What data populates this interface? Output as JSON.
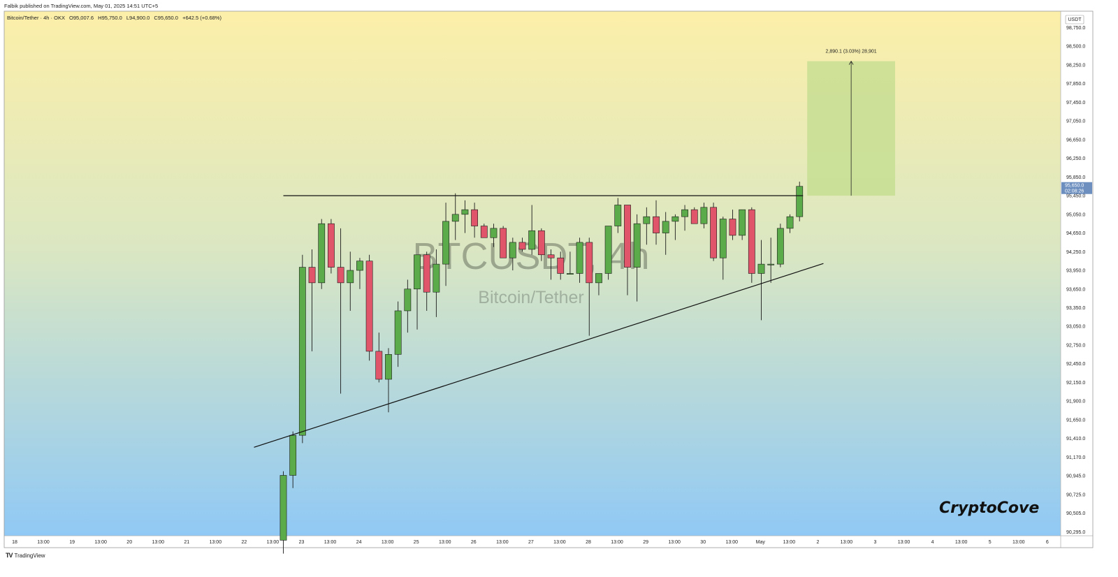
{
  "header": {
    "published_line": "Falbik published on TradingView.com, May 01, 2025 14:51 UTC+5"
  },
  "symbol_bar": {
    "name": "Bitcoin/Tether · 4h · OKX",
    "open": "O95,007.6",
    "high": "H95,750.0",
    "low": "L94,900.0",
    "close": "C95,650.0",
    "change": "+642.5 (+0.68%)"
  },
  "watermark": {
    "ticker": "BTCUSDT, 4h",
    "name": "Bitcoin/Tether"
  },
  "brand": "CryptoCove",
  "footer": {
    "logo": "TV",
    "text": "TradingView"
  },
  "colors": {
    "bg_top": "#fcefa9",
    "bg_bottom": "#90c9f5",
    "up": "#5cab4a",
    "down": "#e0556a",
    "target_box": "#c2dc8e",
    "price_label_bg": "#6c8fbf"
  },
  "chart_data": {
    "type": "candlestick",
    "price_axis": {
      "unit": "USDT",
      "ticks": [
        98750,
        98500,
        98250,
        97850,
        97450,
        97050,
        96650,
        96250,
        95850,
        95450,
        95050,
        94650,
        94250,
        93950,
        93650,
        93350,
        93050,
        92750,
        92450,
        92150,
        91900,
        91650,
        91410,
        91170,
        90945,
        90725,
        90505,
        90295
      ],
      "tick_labels": [
        "98,750.0",
        "98,500.0",
        "98,250.0",
        "97,850.0",
        "97,450.0",
        "97,050.0",
        "96,650.0",
        "96,250.0",
        "95,850.0",
        "95,450.0",
        "95,050.0",
        "94,650.0",
        "94,250.0",
        "93,950.0",
        "93,650.0",
        "93,350.0",
        "93,050.0",
        "92,750.0",
        "92,450.0",
        "92,150.0",
        "91,900.0",
        "91,650.0",
        "91,410.0",
        "91,170.0",
        "90,945.0",
        "90,725.0",
        "90,505.0",
        "90,295.0"
      ],
      "current_price": "95,650.0",
      "countdown": "02:08:26"
    },
    "time_axis": {
      "labels": [
        "18",
        "13:00",
        "19",
        "13:00",
        "20",
        "13:00",
        "21",
        "13:00",
        "22",
        "13:00",
        "23",
        "13:00",
        "24",
        "13:00",
        "25",
        "13:00",
        "26",
        "13:00",
        "27",
        "13:00",
        "28",
        "13:00",
        "29",
        "13:00",
        "30",
        "13:00",
        "May",
        "13:00",
        "2",
        "13:00",
        "3",
        "13:00",
        "4",
        "13:00",
        "5",
        "13:00",
        "6"
      ]
    },
    "candles": [
      [
        90200,
        91000,
        90050,
        90950
      ],
      [
        90950,
        91500,
        90800,
        91450
      ],
      [
        91450,
        94200,
        91350,
        94000
      ],
      [
        94000,
        94300,
        92650,
        93750
      ],
      [
        93750,
        94950,
        93650,
        94850
      ],
      [
        94850,
        94950,
        93900,
        94000
      ],
      [
        94000,
        94750,
        92000,
        93750
      ],
      [
        93750,
        94250,
        93300,
        93950
      ],
      [
        93950,
        94150,
        93650,
        94100
      ],
      [
        94100,
        94200,
        92500,
        92650
      ],
      [
        92650,
        92950,
        92150,
        92200
      ],
      [
        92200,
        92700,
        91750,
        92600
      ],
      [
        92600,
        93450,
        92400,
        93300
      ],
      [
        93300,
        93800,
        92950,
        93650
      ],
      [
        93650,
        94200,
        93000,
        94200
      ],
      [
        94200,
        94250,
        93300,
        93600
      ],
      [
        93600,
        94300,
        93200,
        94050
      ],
      [
        94050,
        95300,
        93700,
        94900
      ],
      [
        94900,
        95500,
        94500,
        95050
      ],
      [
        95050,
        95350,
        94650,
        95150
      ],
      [
        95150,
        95300,
        94550,
        94800
      ],
      [
        94800,
        94850,
        94550,
        94550
      ],
      [
        94550,
        94850,
        94350,
        94750
      ],
      [
        94750,
        94800,
        94200,
        94150
      ],
      [
        94150,
        94550,
        93950,
        94450
      ],
      [
        94450,
        94550,
        94250,
        94300
      ],
      [
        94300,
        95250,
        94200,
        94700
      ],
      [
        94700,
        94750,
        94100,
        94200
      ],
      [
        94200,
        94300,
        93800,
        94150
      ],
      [
        94150,
        94250,
        93800,
        93900
      ],
      [
        93900,
        94250,
        93900,
        93900
      ],
      [
        93900,
        94550,
        93750,
        94450
      ],
      [
        94450,
        94550,
        92900,
        93750
      ],
      [
        93750,
        93900,
        93550,
        93900
      ],
      [
        93900,
        94800,
        93800,
        94800
      ],
      [
        94800,
        95400,
        94650,
        95250
      ],
      [
        95250,
        95250,
        93550,
        94000
      ],
      [
        94000,
        95050,
        93450,
        94850
      ],
      [
        94850,
        95200,
        94400,
        95000
      ],
      [
        95000,
        95350,
        94400,
        94650
      ],
      [
        94650,
        95100,
        94200,
        94900
      ],
      [
        94900,
        95050,
        94500,
        95000
      ],
      [
        95000,
        95250,
        94700,
        95150
      ],
      [
        95150,
        95200,
        94850,
        94850
      ],
      [
        94850,
        95300,
        94750,
        95200
      ],
      [
        95200,
        95300,
        94100,
        94150
      ],
      [
        94150,
        95000,
        93800,
        94950
      ],
      [
        94950,
        95150,
        94500,
        94600
      ],
      [
        94600,
        95150,
        94500,
        95150
      ],
      [
        95150,
        95200,
        93750,
        93900
      ],
      [
        93900,
        94500,
        93150,
        94050
      ],
      [
        94050,
        94550,
        93750,
        94050
      ],
      [
        94050,
        94850,
        94000,
        94750
      ],
      [
        94750,
        95050,
        94650,
        95000
      ],
      [
        95000,
        95750,
        94900,
        95650
      ]
    ],
    "resistance_level": 95450,
    "support_trendline": {
      "from": {
        "x": 0,
        "y": 91530
      },
      "to": {
        "x": 56.5,
        "y": 94060
      }
    },
    "projection": {
      "label": "2,890.1 (3.03%) 28,901",
      "from_price": 95450,
      "to_price": 98300
    }
  }
}
